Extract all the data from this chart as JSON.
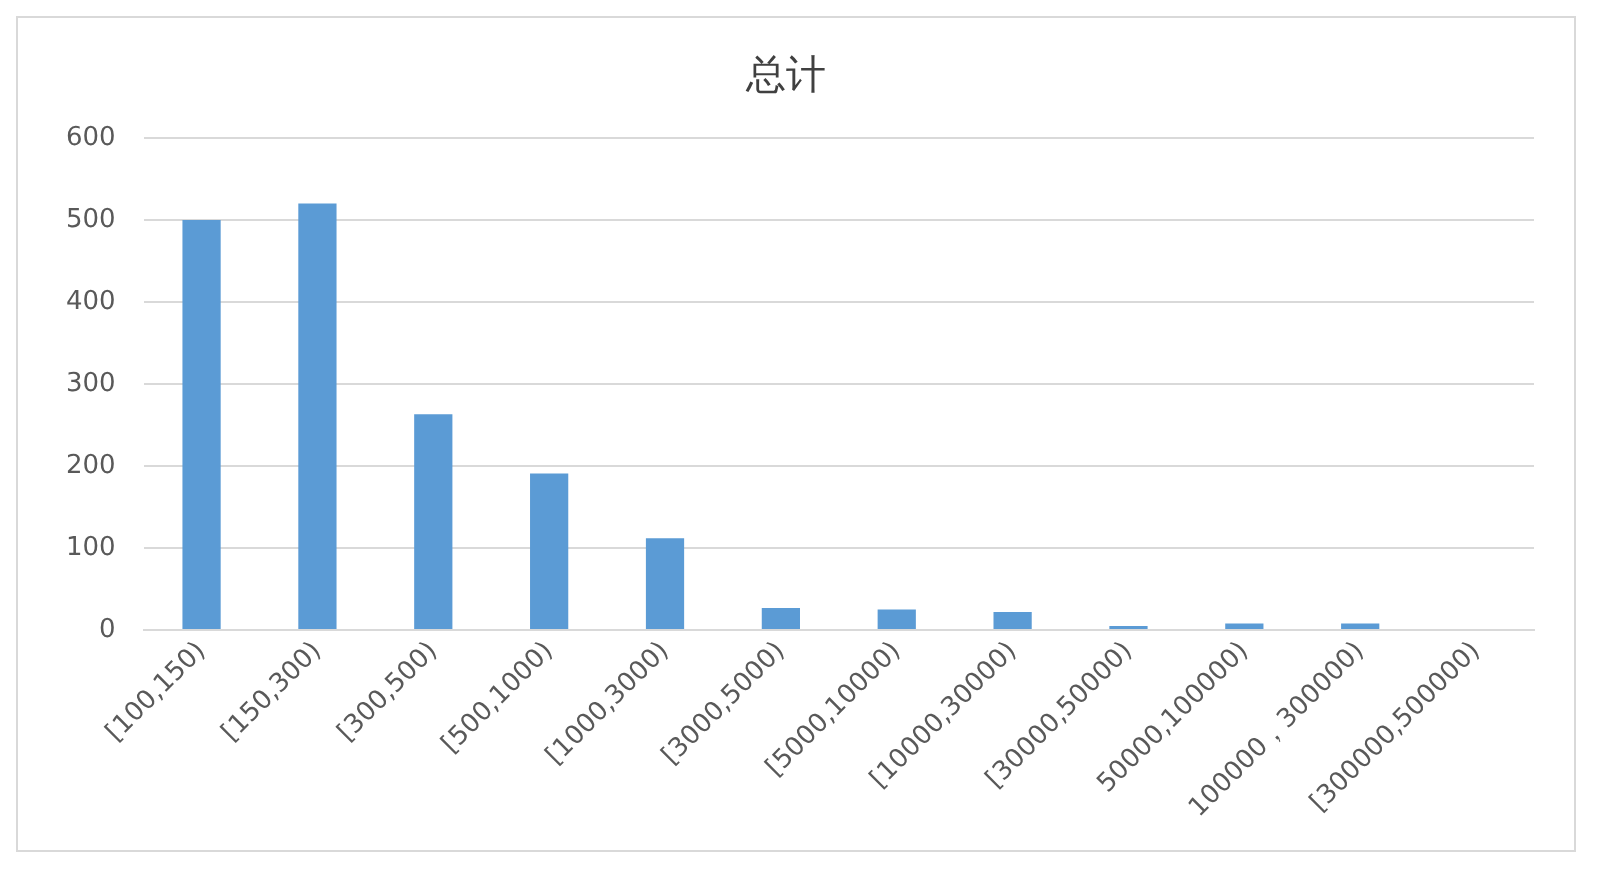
{
  "chart_data": {
    "type": "bar",
    "title": "总计",
    "categories": [
      "[100,150)",
      "[150,300)",
      "[300,500)",
      "[500,1000)",
      "[1000,3000)",
      "[3000,5000)",
      "[5000,10000)",
      "[10000,30000)",
      "[30000,50000)",
      "50000,100000)",
      "100000，300000)",
      "[300000,500000)"
    ],
    "values": [
      500,
      520,
      263,
      191,
      112,
      27,
      25,
      22,
      5,
      8,
      8,
      0
    ],
    "color": "#5b9bd5",
    "ylim": [
      0,
      600
    ],
    "yticks": [
      0,
      100,
      200,
      300,
      400,
      500,
      600
    ],
    "grid": "y",
    "legend": false
  }
}
